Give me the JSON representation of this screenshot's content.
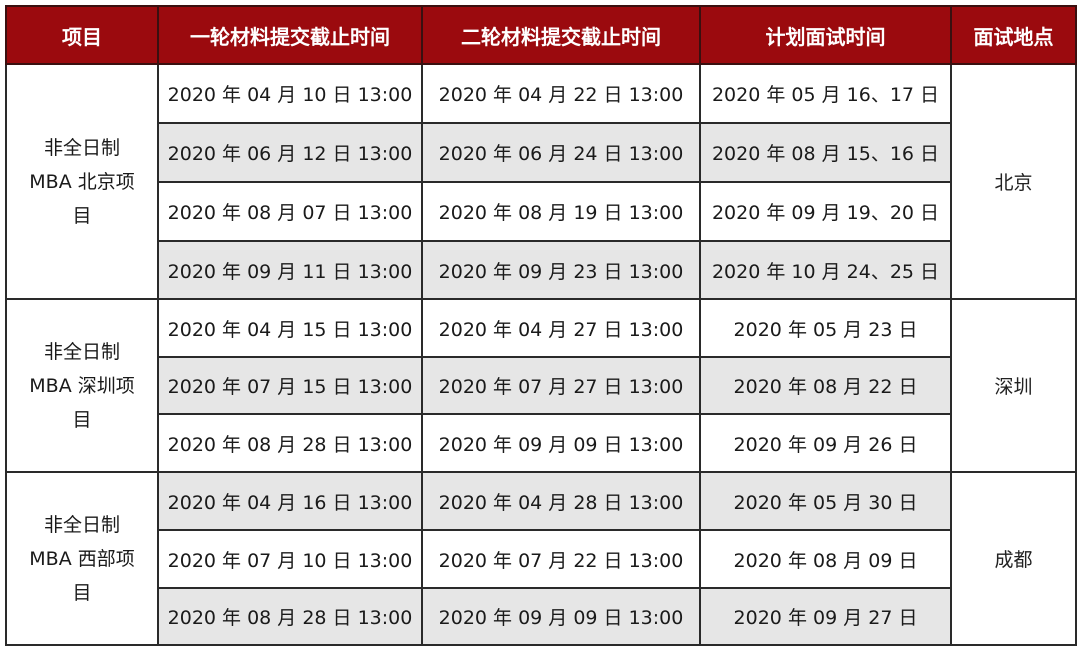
{
  "header": [
    "项目",
    "一轮材料提交截止时间",
    "二轮材料提交截止时间",
    "计划面试时间",
    "面试地点"
  ],
  "colors": {
    "header_bg": "#9b0a0e",
    "shaded_row": "#e6e6e6"
  },
  "groups": [
    {
      "project_lines": [
        "非全日制",
        "MBA 北京项",
        "目"
      ],
      "location": "北京",
      "rows": [
        {
          "round1": "2020 年 04 月 10 日 13:00",
          "round2": "2020 年 04 月 22 日 13:00",
          "interview": "2020 年 05 月 16、17 日",
          "shaded": false
        },
        {
          "round1": "2020 年 06 月 12 日 13:00",
          "round2": "2020 年 06 月 24 日 13:00",
          "interview": "2020 年 08 月 15、16 日",
          "shaded": true
        },
        {
          "round1": "2020 年 08 月 07 日 13:00",
          "round2": "2020 年 08 月 19 日 13:00",
          "interview": "2020 年 09 月 19、20 日",
          "shaded": false
        },
        {
          "round1": "2020 年 09 月 11 日 13:00",
          "round2": "2020 年 09 月 23 日 13:00",
          "interview": "2020 年 10 月 24、25 日",
          "shaded": true
        }
      ]
    },
    {
      "project_lines": [
        "非全日制",
        "MBA 深圳项",
        "目"
      ],
      "location": "深圳",
      "rows": [
        {
          "round1": "2020 年 04 月 15 日 13:00",
          "round2": "2020 年 04 月 27 日 13:00",
          "interview": "2020 年 05 月 23 日",
          "shaded": false
        },
        {
          "round1": "2020 年 07 月 15 日 13:00",
          "round2": "2020 年 07 月 27 日 13:00",
          "interview": "2020 年 08 月 22 日",
          "shaded": true
        },
        {
          "round1": "2020 年 08 月 28 日 13:00",
          "round2": "2020 年 09 月 09 日 13:00",
          "interview": "2020 年 09 月 26 日",
          "shaded": false
        }
      ]
    },
    {
      "project_lines": [
        "非全日制",
        "MBA 西部项",
        "目"
      ],
      "location": "成都",
      "rows": [
        {
          "round1": "2020 年 04 月 16 日 13:00",
          "round2": "2020 年 04 月 28 日 13:00",
          "interview": "2020 年 05 月 30 日",
          "shaded": true
        },
        {
          "round1": "2020 年 07 月 10 日 13:00",
          "round2": "2020 年 07 月 22 日 13:00",
          "interview": "2020 年 08 月 09 日",
          "shaded": false
        },
        {
          "round1": "2020 年 08 月 28 日 13:00",
          "round2": "2020 年 09 月 09 日 13:00",
          "interview": "2020 年 09 月 27 日",
          "shaded": true
        }
      ]
    }
  ]
}
